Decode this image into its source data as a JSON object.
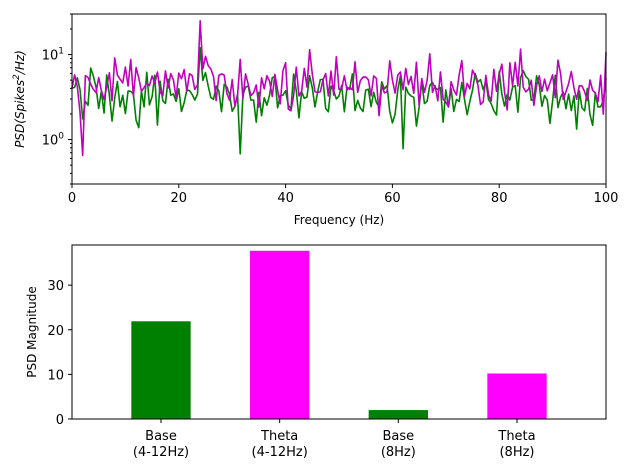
{
  "chart_data": [
    {
      "type": "line",
      "xlabel": "Frequency (Hz)",
      "ylabel_parts": {
        "before": "PSD(Spikes",
        "sup": "2",
        "after": "/Hz)"
      },
      "xlim": [
        0,
        100
      ],
      "ylim": [
        0.3,
        30
      ],
      "yscale": "log",
      "grid": false,
      "x_ticks": [
        0,
        20,
        40,
        60,
        80,
        100
      ],
      "x_tick_labels": [
        "0",
        "20",
        "40",
        "60",
        "80",
        "100"
      ],
      "y_ticks": [
        {
          "value": 1,
          "base": "10",
          "exp": "0"
        },
        {
          "value": 10,
          "base": "10",
          "exp": "1"
        }
      ],
      "x": [
        0.0,
        0.5,
        1.0,
        1.5,
        2.0,
        2.5,
        3.0,
        3.5,
        4.0,
        4.5,
        5.0,
        5.5,
        6.0,
        6.5,
        7.0,
        7.5,
        8.0,
        8.5,
        9.0,
        9.5,
        10.0,
        10.5,
        11.0,
        11.5,
        12.0,
        12.5,
        13.0,
        13.5,
        14.0,
        14.5,
        15.0,
        15.5,
        16.0,
        16.5,
        17.0,
        17.5,
        18.0,
        18.5,
        19.0,
        19.5,
        20.0,
        20.5,
        21.0,
        21.5,
        22.0,
        22.5,
        23.0,
        23.5,
        24.0,
        24.5,
        25.0,
        25.5,
        26.0,
        26.5,
        27.0,
        27.5,
        28.0,
        28.5,
        29.0,
        29.5,
        30.0,
        30.5,
        31.0,
        31.5,
        32.0,
        32.5,
        33.0,
        33.5,
        34.0,
        34.5,
        35.0,
        35.5,
        36.0,
        36.5,
        37.0,
        37.5,
        38.0,
        38.5,
        39.0,
        39.5,
        40.0,
        40.5,
        41.0,
        41.5,
        42.0,
        42.5,
        43.0,
        43.5,
        44.0,
        44.5,
        45.0,
        45.5,
        46.0,
        46.5,
        47.0,
        47.5,
        48.0,
        48.5,
        49.0,
        49.5,
        50.0,
        50.5,
        51.0,
        51.5,
        52.0,
        52.5,
        53.0,
        53.5,
        54.0,
        54.5,
        55.0,
        55.5,
        56.0,
        56.5,
        57.0,
        57.5,
        58.0,
        58.5,
        59.0,
        59.5,
        60.0,
        60.5,
        61.0,
        61.5,
        62.0,
        62.5,
        63.0,
        63.5,
        64.0,
        64.5,
        65.0,
        65.5,
        66.0,
        66.5,
        67.0,
        67.5,
        68.0,
        68.5,
        69.0,
        69.5,
        70.0,
        70.5,
        71.0,
        71.5,
        72.0,
        72.5,
        73.0,
        73.5,
        74.0,
        74.5,
        75.0,
        75.5,
        76.0,
        76.5,
        77.0,
        77.5,
        78.0,
        78.5,
        79.0,
        79.5,
        80.0,
        80.5,
        81.0,
        81.5,
        82.0,
        82.5,
        83.0,
        83.5,
        84.0,
        84.5,
        85.0,
        85.5,
        86.0,
        86.5,
        87.0,
        87.5,
        88.0,
        88.5,
        89.0,
        89.5,
        90.0,
        90.5,
        91.0,
        91.5,
        92.0,
        92.5,
        93.0,
        93.5,
        94.0,
        94.5,
        95.0,
        95.5,
        96.0,
        96.5,
        97.0,
        97.5,
        98.0,
        98.5,
        99.0,
        99.5,
        100.0
      ],
      "series": [
        {
          "color": "#008000",
          "values": [
            4.02,
            4.13,
            5.32,
            3.87,
            1.75,
            2.82,
            2.53,
            6.93,
            5.59,
            4.15,
            2.32,
            3.72,
            2.05,
            5.73,
            3.34,
            1.65,
            3.09,
            4.81,
            2.43,
            3.32,
            2.02,
            3.72,
            3.7,
            3.41,
            1.69,
            1.38,
            3.74,
            2.42,
            6.18,
            2.55,
            3.2,
            5.72,
            1.48,
            4.87,
            2.87,
            2.66,
            5.12,
            3.32,
            3.44,
            2.81,
            3.97,
            2.14,
            2.71,
            3.82,
            3.77,
            3.39,
            2.92,
            3.43,
            12.03,
            4.97,
            6.13,
            4.28,
            3.13,
            2.97,
            4.26,
            3.72,
            2.13,
            4.46,
            4.17,
            3.4,
            2.15,
            2.46,
            3.4,
            0.68,
            3.32,
            4.14,
            4.27,
            2.91,
            2.92,
            1.6,
            3.58,
            1.91,
            3.11,
            2.53,
            3.34,
            5.33,
            5.52,
            2.36,
            3.27,
            3.33,
            3.75,
            2.54,
            2.29,
            5.9,
            3.75,
            1.8,
            3.65,
            3.06,
            3.17,
            5.64,
            4.05,
            2.42,
            3.63,
            5.07,
            5.11,
            2.33,
            2.12,
            4.25,
            3.76,
            3.0,
            3.26,
            4.33,
            2.12,
            4.15,
            3.91,
            5.91,
            2.19,
            2.89,
            2.35,
            2.14,
            3.83,
            3.91,
            2.44,
            3.61,
            2.73,
            2.43,
            4.77,
            3.93,
            4.32,
            2.15,
            1.57,
            1.98,
            3.81,
            5.63,
            0.78,
            4.14,
            3.49,
            3.25,
            3.15,
            1.44,
            2.39,
            4.83,
            2.65,
            2.82,
            4.33,
            4.71,
            4.05,
            3.89,
            4.09,
            1.6,
            3.84,
            2.41,
            3.96,
            2.14,
            2.96,
            2.81,
            4.68,
            2.98,
            1.96,
            2.81,
            3.81,
            5.98,
            4.74,
            5.08,
            3.86,
            4.82,
            2.96,
            2.64,
            2.18,
            1.95,
            6.3,
            3.42,
            2.48,
            3.41,
            2.92,
            4.14,
            4.3,
            2.1,
            5.36,
            6.45,
            5.49,
            5.12,
            2.9,
            2.98,
            5.6,
            4.41,
            2.46,
            3.29,
            2.93,
            1.55,
            2.86,
            5.72,
            2.38,
            3.17,
            3.61,
            2.3,
            3.42,
            2.19,
            3.26,
            1.33,
            3.76,
            2.36,
            2.18,
            3.99,
            1.97,
            1.47,
            3.52,
            2.42,
            2.43,
            2.88,
            5.26
          ],
          "label_note": ""
        },
        {
          "color": "#bf00bf",
          "values": [
            4.03,
            5.76,
            4.2,
            2.1,
            0.65,
            5.64,
            5.39,
            4.48,
            3.9,
            3.56,
            5.36,
            3.78,
            2.97,
            4.16,
            6.1,
            2.86,
            9.14,
            5.74,
            5.13,
            4.63,
            7.12,
            4.26,
            8.75,
            3.24,
            7.03,
            5.31,
            3.7,
            4.09,
            4.6,
            4.31,
            5.6,
            4.61,
            6.23,
            3.63,
            3.26,
            6.42,
            4.06,
            5.97,
            4.99,
            3.14,
            6.06,
            5.2,
            6.66,
            3.7,
            5.95,
            5.64,
            3.9,
            4.37,
            24.91,
            6.77,
            9.54,
            7.42,
            6.78,
            5.54,
            2.88,
            5.69,
            5.92,
            5.73,
            3.5,
            2.9,
            5.06,
            2.47,
            3.29,
            8.77,
            3.04,
            5.92,
            4.46,
            3.29,
            3.54,
            4.39,
            2.41,
            5.32,
            3.95,
            5.63,
            4.86,
            3.21,
            5.85,
            3.81,
            2.63,
            6.43,
            8.01,
            2.29,
            2.18,
            3.28,
            7.1,
            3.26,
            3.68,
            6.86,
            4.15,
            11.41,
            5.88,
            3.65,
            3.58,
            3.65,
            5.02,
            5.98,
            3.26,
            6.39,
            3.34,
            9.41,
            3.89,
            3.95,
            5.63,
            3.83,
            4.09,
            3.86,
            8.22,
            3.59,
            4.93,
            5.43,
            5.46,
            5.03,
            3.27,
            5.6,
            5.24,
            1.91,
            4.32,
            3.54,
            3.65,
            8.43,
            5.02,
            3.52,
            5.71,
            6.24,
            3.85,
            6.87,
            4.44,
            5.52,
            3.5,
            8.12,
            2.55,
            5.22,
            3.59,
            4.93,
            10.2,
            3.58,
            4.3,
            2.86,
            6.24,
            2.98,
            2.76,
            2.44,
            4.79,
            3.82,
            3.34,
            5.76,
            8.49,
            3.24,
            4.58,
            3.96,
            6.55,
            5.63,
            4.41,
            2.58,
            2.78,
            5.68,
            3.38,
            2.84,
            6.7,
            3.69,
            5.93,
            7.71,
            3.6,
            2.23,
            8.01,
            4.28,
            8.11,
            4.27,
            11.57,
            4.14,
            3.64,
            3.91,
            4.99,
            2.52,
            4.32,
            5.62,
            3.68,
            5.13,
            3.74,
            4.64,
            5.77,
            3.11,
            8.59,
            5.95,
            2.96,
            3.65,
            4.55,
            6.31,
            4.05,
            2.97,
            4.29,
            4.28,
            3.64,
            2.89,
            5.02,
            3.79,
            3.52,
            2.79,
            5.7,
            1.99,
            10.66
          ],
          "label_note": ""
        }
      ]
    },
    {
      "type": "bar",
      "ylabel": "PSD Magnitude",
      "ylim": [
        0,
        39
      ],
      "y_ticks": [
        0,
        10,
        20,
        30
      ],
      "y_tick_labels": [
        "0",
        "10",
        "20",
        "30"
      ],
      "grid": false,
      "categories": [
        {
          "line1": "Base",
          "line2": "(4-12Hz)"
        },
        {
          "line1": "Theta",
          "line2": "(4-12Hz)"
        },
        {
          "line1": "Base",
          "line2": "(8Hz)"
        },
        {
          "line1": "Theta",
          "line2": "(8Hz)"
        }
      ],
      "values": [
        21.9,
        37.7,
        2.0,
        10.2
      ],
      "colors": [
        "#008000",
        "#ff00ff",
        "#008000",
        "#ff00ff"
      ]
    }
  ]
}
